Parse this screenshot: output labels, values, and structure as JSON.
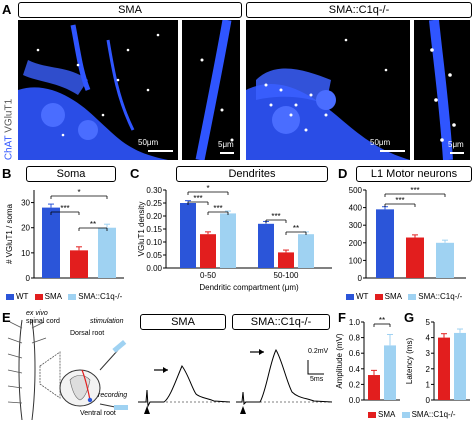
{
  "colors": {
    "wt": "#2b55d9",
    "sma": "#e21e1e",
    "sma_c1q": "#9fd2f2",
    "blue_stain": "#2f55ff"
  },
  "panel_a": {
    "letter": "A",
    "side_label_chat": "ChAT",
    "side_label_vglut": "VGluT1",
    "left_header": "SMA",
    "right_header": "SMA::C1q-/-",
    "scale_large_left": "50μm",
    "scale_small_left": "5μm",
    "scale_large_right": "50μm",
    "scale_small_right": "5μm"
  },
  "panel_b": {
    "letter": "B",
    "title": "Soma",
    "ylabel": "# VGluT1 / soma",
    "sig1": "*",
    "sig2": "***",
    "sig3": "**"
  },
  "panel_c": {
    "letter": "C",
    "title": "Dendrites",
    "ylabel": "VGluT1 density",
    "xlabel": "Dendritic compartment (μm)",
    "sig1": "*",
    "sig2": "***",
    "sig3": "***",
    "sig4": "***",
    "sig5": "**"
  },
  "panel_d": {
    "letter": "D",
    "title": "L1 Motor neurons",
    "sig1": "***",
    "sig2": "***"
  },
  "legend": {
    "wt": "WT",
    "sma": "SMA",
    "sma_c1q": "SMA::C1q-/-"
  },
  "panel_e": {
    "letter": "E",
    "ex_vivo": "ex vivo",
    "spinal_cord": "spinal cord",
    "stimulation": "stimulation",
    "recording": "recording",
    "dorsal_root": "Dorsal root",
    "ventral_root": "Ventral root",
    "trace_left": "SMA",
    "trace_right": "SMA::C1q-/-",
    "scale_mv": "0.2mV",
    "scale_ms": "5ms"
  },
  "panel_f": {
    "letter": "F",
    "ylabel": "Amplitude (mV)",
    "sig": "**"
  },
  "panel_g": {
    "letter": "G",
    "ylabel": "Latency (ms)"
  },
  "legend_fg": {
    "sma": "SMA",
    "sma_c1q": "SMA::C1q-/-"
  },
  "chart_data": [
    {
      "type": "bar",
      "panel": "B",
      "categories": [
        "WT",
        "SMA",
        "SMA::C1q-/-"
      ],
      "values": [
        28,
        11,
        20
      ],
      "ylabel": "# VGluT1 / soma",
      "ylim": [
        0,
        35
      ],
      "yticks": [
        "0",
        "10",
        "20",
        "30"
      ]
    },
    {
      "type": "bar",
      "panel": "C",
      "categories": [
        "0-50",
        "50-100"
      ],
      "series": [
        {
          "name": "WT",
          "values": [
            0.25,
            0.17
          ]
        },
        {
          "name": "SMA",
          "values": [
            0.13,
            0.06
          ]
        },
        {
          "name": "SMA::C1q-/-",
          "values": [
            0.21,
            0.13
          ]
        }
      ],
      "xlabel": "Dendritic compartment (μm)",
      "ylabel": "VGluT1 density",
      "ylim": [
        0,
        0.3
      ],
      "yticks": [
        "0.00",
        "0.05",
        "0.10",
        "0.15",
        "0.20",
        "0.25",
        "0.30"
      ]
    },
    {
      "type": "bar",
      "panel": "D",
      "categories": [
        "WT",
        "SMA",
        "SMA::C1q-/-"
      ],
      "values": [
        390,
        230,
        200
      ],
      "ylim": [
        0,
        500
      ],
      "yticks": [
        "0",
        "100",
        "200",
        "300",
        "400",
        "500"
      ]
    },
    {
      "type": "bar",
      "panel": "F",
      "categories": [
        "SMA",
        "SMA::C1q-/-"
      ],
      "values": [
        0.32,
        0.7
      ],
      "ylabel": "Amplitude (mV)",
      "ylim": [
        0,
        1.0
      ],
      "yticks": [
        "0.0",
        "0.2",
        "0.4",
        "0.6",
        "0.8",
        "1.0"
      ]
    },
    {
      "type": "bar",
      "panel": "G",
      "categories": [
        "SMA",
        "SMA::C1q-/-"
      ],
      "values": [
        4.0,
        4.3
      ],
      "ylabel": "Latency (ms)",
      "ylim": [
        0,
        5
      ],
      "yticks": [
        "0",
        "1",
        "2",
        "3",
        "4",
        "5"
      ]
    }
  ]
}
